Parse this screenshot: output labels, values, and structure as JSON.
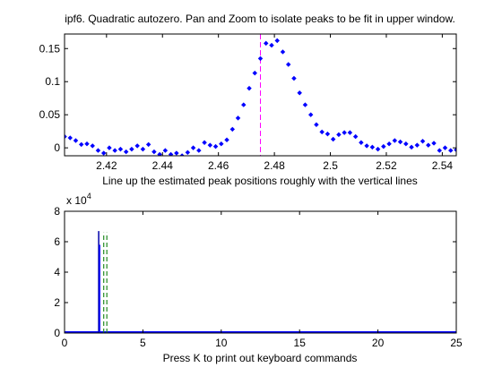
{
  "window": {
    "background": "#ffffff"
  },
  "chart_data": [
    {
      "type": "scatter",
      "title": "ipf6. Quadratic autozero. Pan and Zoom to isolate peaks to be fit in upper window.",
      "xlabel": "Line up the estimated peak positions roughly with the vertical lines",
      "ylabel": "",
      "xlim": [
        2.405,
        2.545
      ],
      "ylim": [
        -0.012,
        0.172
      ],
      "xticks": [
        2.42,
        2.44,
        2.46,
        2.48,
        2.5,
        2.52,
        2.54
      ],
      "xtick_labels": [
        "2.42",
        "2.44",
        "2.46",
        "2.48",
        "2.5",
        "2.52",
        "2.54"
      ],
      "yticks": [
        0,
        0.05,
        0.1,
        0.15
      ],
      "ytick_labels": [
        "0",
        "0.05",
        "0.1",
        "0.15"
      ],
      "series_color": "#0000ff",
      "marker": "diamond",
      "x": [
        2.405,
        2.407,
        2.409,
        2.411,
        2.413,
        2.415,
        2.417,
        2.419,
        2.421,
        2.423,
        2.425,
        2.427,
        2.429,
        2.431,
        2.433,
        2.435,
        2.437,
        2.439,
        2.441,
        2.443,
        2.445,
        2.447,
        2.449,
        2.451,
        2.453,
        2.455,
        2.457,
        2.459,
        2.461,
        2.463,
        2.465,
        2.467,
        2.469,
        2.471,
        2.473,
        2.475,
        2.477,
        2.479,
        2.481,
        2.483,
        2.485,
        2.487,
        2.489,
        2.491,
        2.493,
        2.495,
        2.497,
        2.499,
        2.501,
        2.503,
        2.505,
        2.507,
        2.509,
        2.511,
        2.513,
        2.515,
        2.517,
        2.519,
        2.521,
        2.523,
        2.525,
        2.527,
        2.529,
        2.531,
        2.533,
        2.535,
        2.537,
        2.539,
        2.541,
        2.543,
        2.545
      ],
      "y": [
        0.017,
        0.015,
        0.011,
        0.005,
        0.006,
        0.003,
        -0.004,
        -0.008,
        0.0,
        -0.004,
        -0.002,
        -0.006,
        -0.002,
        0.003,
        -0.002,
        0.005,
        -0.006,
        -0.01,
        -0.004,
        -0.01,
        -0.008,
        -0.012,
        -0.007,
        0.0,
        -0.004,
        0.008,
        0.004,
        0.002,
        0.006,
        0.012,
        0.028,
        0.045,
        0.065,
        0.09,
        0.113,
        0.135,
        0.158,
        0.155,
        0.162,
        0.145,
        0.126,
        0.105,
        0.083,
        0.065,
        0.05,
        0.035,
        0.024,
        0.021,
        0.013,
        0.02,
        0.023,
        0.023,
        0.017,
        0.008,
        0.003,
        0.001,
        -0.002,
        0.002,
        0.006,
        0.011,
        0.009,
        0.006,
        0.001,
        0.004,
        0.01,
        0.004,
        0.007,
        -0.004,
        0.0,
        -0.004,
        -0.003
      ],
      "vlines": [
        {
          "x": 2.475,
          "color": "#ff00ff",
          "style": "dashed"
        }
      ]
    },
    {
      "type": "bar",
      "title": "",
      "xlabel": "Press K to print out keyboard commands",
      "ylabel": "",
      "xlim": [
        0,
        25
      ],
      "ylim": [
        0,
        80000
      ],
      "y_exponent_label": "x 10",
      "y_exponent_power": "4",
      "xticks": [
        0,
        5,
        10,
        15,
        20,
        25
      ],
      "xtick_labels": [
        "0",
        "5",
        "10",
        "15",
        "20",
        "25"
      ],
      "yticks": [
        0,
        20000,
        40000,
        60000,
        80000
      ],
      "ytick_labels": [
        "0",
        "2",
        "4",
        "6",
        "8"
      ],
      "spikes": [
        {
          "x": 2.18,
          "y": 67000,
          "color": "#0000aa"
        },
        {
          "x": 2.24,
          "y": 58000,
          "color": "#0000ff"
        }
      ],
      "baseline": {
        "y": 0,
        "color": "#0000ff"
      },
      "vlines": [
        {
          "x": 2.5,
          "ymax": 66000,
          "color": "#228b22",
          "style": "dashed"
        },
        {
          "x": 2.7,
          "ymax": 66000,
          "color": "#228b22",
          "style": "dashed"
        }
      ]
    }
  ]
}
